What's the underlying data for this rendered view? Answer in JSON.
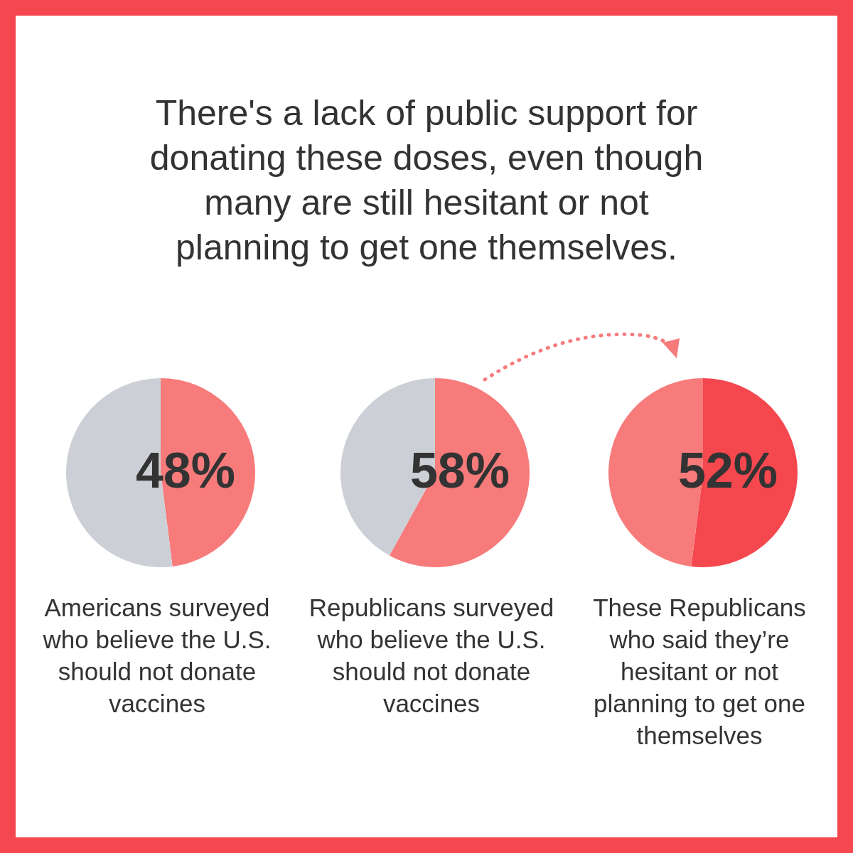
{
  "chart_data": [
    {
      "type": "pie",
      "title": "There's a lack of public support for donating these doses, even though many are still hesitant or not planning to get one themselves.",
      "categories": [
        null,
        null
      ],
      "values": [
        48,
        52
      ],
      "colors": [
        "#f77b7b",
        "#cdcfd6"
      ],
      "value_labels": [
        "48%",
        null
      ],
      "xlabel": "Americans surveyed who believe the U.S. should not donate vaccines"
    },
    {
      "type": "pie",
      "categories": [
        null,
        null
      ],
      "values": [
        58,
        42
      ],
      "colors": [
        "#f77b7b",
        "#cdcfd6"
      ],
      "value_labels": [
        "58%",
        null
      ],
      "xlabel": "Republicans surveyed who believe the U.S. should not donate vaccines"
    },
    {
      "type": "pie",
      "categories": [
        null,
        null
      ],
      "values": [
        52,
        48
      ],
      "colors": [
        "#f4474e",
        "#f77b7b"
      ],
      "value_labels": [
        "52%",
        null
      ],
      "xlabel": "These Republicans who said they’re hesitant or not planning to get one themselves"
    }
  ]
}
